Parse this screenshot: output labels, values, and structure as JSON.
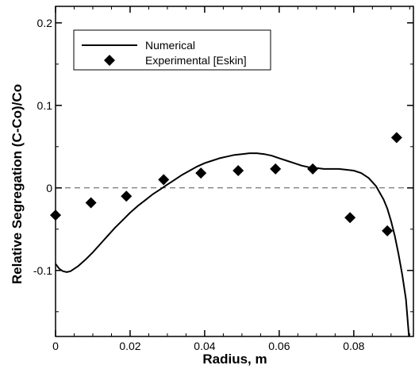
{
  "chart_data": {
    "type": "line",
    "xlabel": "Radius, m",
    "ylabel": "Relative Segregation (C-Co)/Co",
    "xlim": [
      0,
      0.096
    ],
    "ylim": [
      -0.18,
      0.22
    ],
    "x_ticks": [
      {
        "value": 0,
        "label": "0"
      },
      {
        "value": 0.02,
        "label": "0.02"
      },
      {
        "value": 0.04,
        "label": "0.04"
      },
      {
        "value": 0.06,
        "label": "0.06"
      },
      {
        "value": 0.08,
        "label": "0.08"
      }
    ],
    "y_ticks": [
      {
        "value": -0.1,
        "label": "-0.1"
      },
      {
        "value": 0,
        "label": "0"
      },
      {
        "value": 0.1,
        "label": "0.1"
      },
      {
        "value": 0.2,
        "label": "0.2"
      }
    ],
    "reference_line": {
      "y": 0,
      "style": "dashed"
    },
    "legend": {
      "position": "top-left"
    },
    "series": [
      {
        "name": "Numerical",
        "style": "line",
        "color": "#000000",
        "x": [
          0,
          0.001,
          0.002,
          0.003,
          0.004,
          0.006,
          0.008,
          0.01,
          0.012,
          0.014,
          0.016,
          0.018,
          0.02,
          0.022,
          0.024,
          0.026,
          0.028,
          0.03,
          0.032,
          0.034,
          0.036,
          0.038,
          0.04,
          0.042,
          0.044,
          0.046,
          0.048,
          0.05,
          0.052,
          0.054,
          0.056,
          0.058,
          0.06,
          0.062,
          0.064,
          0.066,
          0.068,
          0.07,
          0.072,
          0.074,
          0.076,
          0.078,
          0.08,
          0.082,
          0.084,
          0.086,
          0.088,
          0.089,
          0.09,
          0.091,
          0.092,
          0.093,
          0.094,
          0.0948
        ],
        "y": [
          -0.092,
          -0.098,
          -0.101,
          -0.102,
          -0.101,
          -0.095,
          -0.087,
          -0.078,
          -0.068,
          -0.058,
          -0.048,
          -0.039,
          -0.03,
          -0.022,
          -0.015,
          -0.008,
          -0.002,
          0.004,
          0.01,
          0.016,
          0.021,
          0.026,
          0.03,
          0.033,
          0.036,
          0.038,
          0.04,
          0.041,
          0.042,
          0.042,
          0.041,
          0.039,
          0.036,
          0.033,
          0.03,
          0.027,
          0.025,
          0.024,
          0.023,
          0.023,
          0.023,
          0.022,
          0.021,
          0.018,
          0.012,
          0.002,
          -0.014,
          -0.025,
          -0.04,
          -0.058,
          -0.08,
          -0.105,
          -0.135,
          -0.18
        ]
      },
      {
        "name": "Experimental [Eskin]",
        "style": "scatter",
        "marker": "diamond",
        "color": "#000000",
        "x": [
          0.0,
          0.0095,
          0.019,
          0.029,
          0.039,
          0.049,
          0.059,
          0.069,
          0.079,
          0.089,
          0.0915
        ],
        "y": [
          -0.033,
          -0.018,
          -0.01,
          0.01,
          0.018,
          0.021,
          0.023,
          0.023,
          -0.036,
          -0.052,
          0.061
        ]
      }
    ]
  }
}
